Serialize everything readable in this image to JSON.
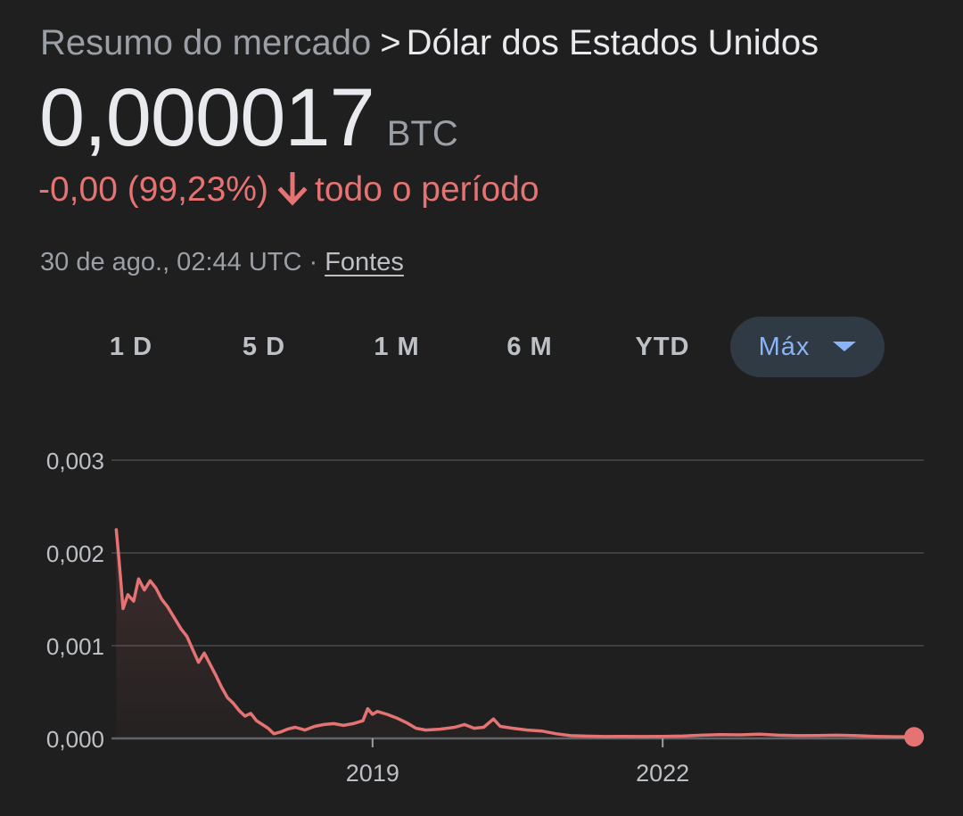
{
  "header": {
    "parent": "Resumo do mercado",
    "separator": ">",
    "current": "Dólar dos Estados Unidos"
  },
  "price": {
    "value": "0,000017",
    "unit": "BTC"
  },
  "change": {
    "text": "-0,00 (99,23%)",
    "period": "todo o período",
    "direction": "down"
  },
  "meta": {
    "timestamp": "30 de ago., 02:44 UTC ·",
    "sources_label": "Fontes"
  },
  "ranges": [
    {
      "label": "1 D",
      "active": false
    },
    {
      "label": "5 D",
      "active": false
    },
    {
      "label": "1 M",
      "active": false
    },
    {
      "label": "6 M",
      "active": false
    },
    {
      "label": "YTD",
      "active": false
    },
    {
      "label": "Máx",
      "active": true
    }
  ],
  "colors": {
    "background": "#1f1f1f",
    "line": "#e57373",
    "grid": "#3c4043",
    "accent": "#8ab4f8",
    "active_tab_bg": "#303a44"
  },
  "chart_data": {
    "type": "area",
    "yticks": [
      "0,003",
      "0,002",
      "0,001",
      "0,000"
    ],
    "ytick_values": [
      0.003,
      0.002,
      0.001,
      0
    ],
    "ylim": [
      0,
      0.003
    ],
    "xticks": [
      "2019",
      "2022"
    ],
    "xtick_values": [
      2019.0,
      2022.0
    ],
    "xlim": [
      2016.3,
      2024.7
    ],
    "grid": true,
    "series": [
      {
        "values": [
          [
            2016.35,
            0.00225
          ],
          [
            2016.38,
            0.0019
          ],
          [
            2016.42,
            0.0014
          ],
          [
            2016.47,
            0.00155
          ],
          [
            2016.53,
            0.00148
          ],
          [
            2016.58,
            0.00172
          ],
          [
            2016.64,
            0.0016
          ],
          [
            2016.7,
            0.0017
          ],
          [
            2016.76,
            0.00162
          ],
          [
            2016.82,
            0.0015
          ],
          [
            2016.88,
            0.00142
          ],
          [
            2016.95,
            0.0013
          ],
          [
            2017.02,
            0.00118
          ],
          [
            2017.08,
            0.0011
          ],
          [
            2017.14,
            0.00096
          ],
          [
            2017.2,
            0.00082
          ],
          [
            2017.26,
            0.00092
          ],
          [
            2017.32,
            0.0008
          ],
          [
            2017.38,
            0.00068
          ],
          [
            2017.44,
            0.00055
          ],
          [
            2017.5,
            0.00044
          ],
          [
            2017.56,
            0.00038
          ],
          [
            2017.62,
            0.0003
          ],
          [
            2017.68,
            0.00024
          ],
          [
            2017.74,
            0.00027
          ],
          [
            2017.8,
            0.00019
          ],
          [
            2017.86,
            0.00015
          ],
          [
            2017.92,
            0.00011
          ],
          [
            2017.98,
            5e-05
          ],
          [
            2018.05,
            7e-05
          ],
          [
            2018.12,
            0.0001
          ],
          [
            2018.2,
            0.00012
          ],
          [
            2018.3,
            9e-05
          ],
          [
            2018.4,
            0.00013
          ],
          [
            2018.5,
            0.00015
          ],
          [
            2018.6,
            0.00016
          ],
          [
            2018.7,
            0.00014
          ],
          [
            2018.8,
            0.00016
          ],
          [
            2018.9,
            0.00019
          ],
          [
            2018.95,
            0.00032
          ],
          [
            2019.0,
            0.00026
          ],
          [
            2019.05,
            0.00029
          ],
          [
            2019.15,
            0.00026
          ],
          [
            2019.25,
            0.00022
          ],
          [
            2019.35,
            0.00017
          ],
          [
            2019.45,
            0.00011
          ],
          [
            2019.55,
            9e-05
          ],
          [
            2019.7,
            0.0001
          ],
          [
            2019.85,
            0.00012
          ],
          [
            2019.95,
            0.00015
          ],
          [
            2020.05,
            0.00011
          ],
          [
            2020.15,
            0.00012
          ],
          [
            2020.25,
            0.00021
          ],
          [
            2020.32,
            0.00013
          ],
          [
            2020.45,
            0.00011
          ],
          [
            2020.6,
            9e-05
          ],
          [
            2020.75,
            8e-05
          ],
          [
            2020.9,
            5e-05
          ],
          [
            2021.05,
            3e-05
          ],
          [
            2021.2,
            2.5e-05
          ],
          [
            2021.4,
            2e-05
          ],
          [
            2021.6,
            2.2e-05
          ],
          [
            2021.8,
            2e-05
          ],
          [
            2022.0,
            2.2e-05
          ],
          [
            2022.2,
            2.5e-05
          ],
          [
            2022.4,
            3.5e-05
          ],
          [
            2022.6,
            4e-05
          ],
          [
            2022.8,
            3.8e-05
          ],
          [
            2023.0,
            4.5e-05
          ],
          [
            2023.2,
            3.5e-05
          ],
          [
            2023.4,
            3e-05
          ],
          [
            2023.6,
            3.2e-05
          ],
          [
            2023.8,
            3.5e-05
          ],
          [
            2024.0,
            3e-05
          ],
          [
            2024.2,
            2.2e-05
          ],
          [
            2024.4,
            1.8e-05
          ],
          [
            2024.6,
            1.7e-05
          ]
        ]
      }
    ]
  }
}
